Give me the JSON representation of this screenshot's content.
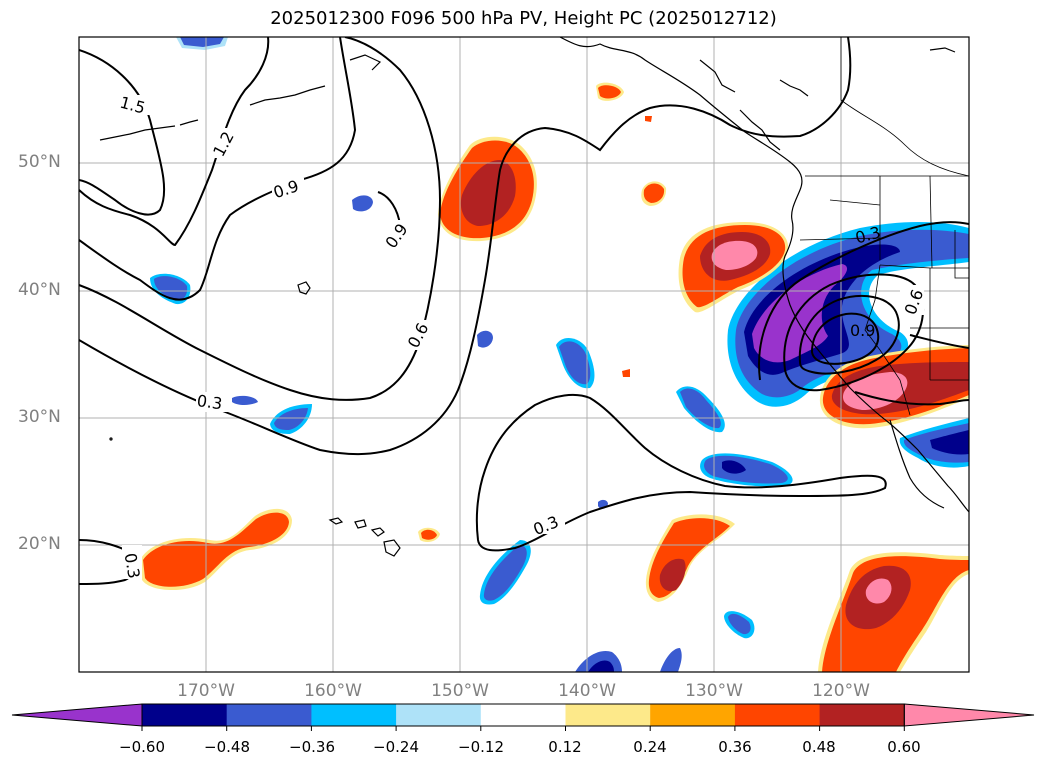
{
  "title": "2025012300 F096 500 hPa PV, Height PC (2025012712)",
  "lat_labels": [
    "50°N",
    "40°N",
    "30°N",
    "20°N"
  ],
  "lon_labels": [
    "170°W",
    "160°W",
    "150°W",
    "140°W",
    "130°W",
    "120°W"
  ],
  "contour_labels": [
    "1.5",
    "1.2",
    "0.9",
    "0.9",
    "0.6",
    "0.3",
    "0.3",
    "0.3",
    "0.6",
    "0.9",
    "0.3"
  ],
  "colorbar": {
    "tick_labels": [
      "−0.60",
      "−0.48",
      "−0.36",
      "−0.24",
      "−0.12",
      "0.12",
      "0.24",
      "0.36",
      "0.48",
      "0.60"
    ],
    "colors": [
      "#9933cc",
      "#00008b",
      "#3a5bd0",
      "#00bfff",
      "#aee2f8",
      "#ffffff",
      "#fde98a",
      "#ffa500",
      "#ff4500",
      "#b22222",
      "#ff88aa"
    ]
  }
}
